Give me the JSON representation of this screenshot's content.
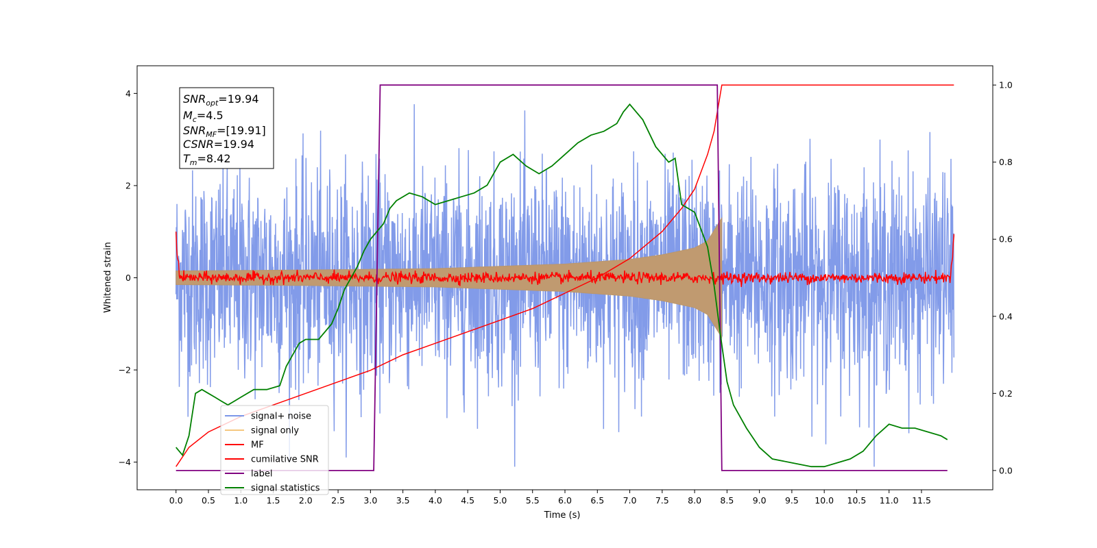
{
  "chart_data": {
    "type": "line",
    "xlabel": "Time (s)",
    "ylabel": "Whitened strain",
    "xlim": [
      -0.6,
      12.6
    ],
    "ylim": [
      -4.6,
      4.6
    ],
    "y2lim": [
      -0.05,
      1.05
    ],
    "x_ticks": [
      "0.0",
      "0.5",
      "1.0",
      "1.5",
      "2.0",
      "2.5",
      "3.0",
      "3.5",
      "4.0",
      "4.5",
      "5.0",
      "5.5",
      "6.0",
      "6.5",
      "7.0",
      "7.5",
      "8.0",
      "8.5",
      "9.0",
      "9.5",
      "10.0",
      "10.5",
      "11.0",
      "11.5"
    ],
    "y_ticks": [
      "4",
      "2",
      "0",
      "−2",
      "−4"
    ],
    "y2_ticks": [
      "1.0",
      "0.8",
      "0.6",
      "0.4",
      "0.2",
      "0.0"
    ],
    "grid": false,
    "legend_position": "lower-left",
    "annotation": {
      "snr_opt": {
        "base": "SNR",
        "sub": "opt",
        "value": "=19.94"
      },
      "mc": {
        "base": "M",
        "sub": "c",
        "value": "=4.5"
      },
      "snr_mf": {
        "base": "SNR",
        "sub": "MF",
        "value": "=[19.91]"
      },
      "csnr": {
        "base": "CSNR",
        "sub": "",
        "value": "=19.94"
      },
      "tm": {
        "base": "T",
        "sub": "m",
        "value": "=8.42"
      }
    },
    "series": [
      {
        "name": "signal+ noise",
        "color": "#7b96e8",
        "axis": "left",
        "description_range": [
          -4.1,
          4.2
        ],
        "x_range": [
          0.0,
          12.0
        ]
      },
      {
        "name": "signal only",
        "color": "#f5c77e",
        "axis": "left",
        "envelope": {
          "x": [
            0.0,
            2.0,
            4.0,
            6.0,
            7.0,
            7.5,
            8.0,
            8.2,
            8.42
          ],
          "amp": [
            0.15,
            0.17,
            0.2,
            0.3,
            0.4,
            0.5,
            0.65,
            0.8,
            1.3
          ]
        }
      },
      {
        "name": "MF",
        "color": "#ff0000",
        "axis": "left",
        "endpoints": {
          "x": [
            0.0,
            12.0
          ],
          "y": [
            1.0,
            0.95
          ]
        },
        "noise_level": 0.06
      },
      {
        "name": "cumilative SNR",
        "color": "#ff0000",
        "axis": "right",
        "x": [
          0.0,
          0.2,
          0.5,
          1.0,
          1.5,
          2.0,
          2.5,
          3.0,
          3.5,
          4.0,
          4.5,
          5.0,
          5.5,
          6.0,
          6.5,
          7.0,
          7.5,
          7.8,
          8.0,
          8.2,
          8.3,
          8.42,
          8.5,
          12.0
        ],
        "y": [
          0.01,
          0.06,
          0.1,
          0.14,
          0.17,
          0.2,
          0.23,
          0.26,
          0.3,
          0.33,
          0.36,
          0.39,
          0.42,
          0.46,
          0.5,
          0.55,
          0.62,
          0.68,
          0.73,
          0.82,
          0.88,
          1.0,
          1.0,
          1.0
        ]
      },
      {
        "name": "label",
        "color": "#800080",
        "axis": "right",
        "x": [
          0.0,
          3.05,
          3.15,
          8.35,
          8.42,
          11.9
        ],
        "y": [
          0.0,
          0.0,
          1.0,
          1.0,
          0.0,
          0.0
        ]
      },
      {
        "name": "signal statistics",
        "color": "#008000",
        "axis": "right",
        "x": [
          0.0,
          0.1,
          0.2,
          0.3,
          0.4,
          0.5,
          0.6,
          0.7,
          0.8,
          0.9,
          1.0,
          1.2,
          1.4,
          1.6,
          1.7,
          1.8,
          1.9,
          2.0,
          2.2,
          2.4,
          2.5,
          2.6,
          2.7,
          2.8,
          2.9,
          3.0,
          3.1,
          3.2,
          3.3,
          3.4,
          3.6,
          3.8,
          4.0,
          4.2,
          4.4,
          4.6,
          4.8,
          5.0,
          5.2,
          5.4,
          5.6,
          5.8,
          6.0,
          6.2,
          6.4,
          6.6,
          6.8,
          6.9,
          7.0,
          7.2,
          7.4,
          7.6,
          7.7,
          7.8,
          8.0,
          8.2,
          8.3,
          8.4,
          8.5,
          8.6,
          8.8,
          9.0,
          9.2,
          9.5,
          9.8,
          10.0,
          10.2,
          10.4,
          10.6,
          10.8,
          11.0,
          11.2,
          11.4,
          11.6,
          11.8,
          11.9
        ],
        "y": [
          0.06,
          0.04,
          0.09,
          0.2,
          0.21,
          0.2,
          0.19,
          0.18,
          0.17,
          0.18,
          0.19,
          0.21,
          0.21,
          0.22,
          0.27,
          0.3,
          0.33,
          0.34,
          0.34,
          0.38,
          0.42,
          0.47,
          0.5,
          0.53,
          0.57,
          0.6,
          0.62,
          0.64,
          0.68,
          0.7,
          0.72,
          0.71,
          0.69,
          0.7,
          0.71,
          0.72,
          0.74,
          0.8,
          0.82,
          0.79,
          0.77,
          0.79,
          0.82,
          0.85,
          0.87,
          0.88,
          0.9,
          0.93,
          0.95,
          0.91,
          0.84,
          0.8,
          0.81,
          0.69,
          0.67,
          0.58,
          0.48,
          0.35,
          0.23,
          0.17,
          0.11,
          0.06,
          0.03,
          0.02,
          0.01,
          0.01,
          0.02,
          0.03,
          0.05,
          0.09,
          0.12,
          0.11,
          0.11,
          0.1,
          0.09,
          0.08
        ]
      }
    ]
  }
}
